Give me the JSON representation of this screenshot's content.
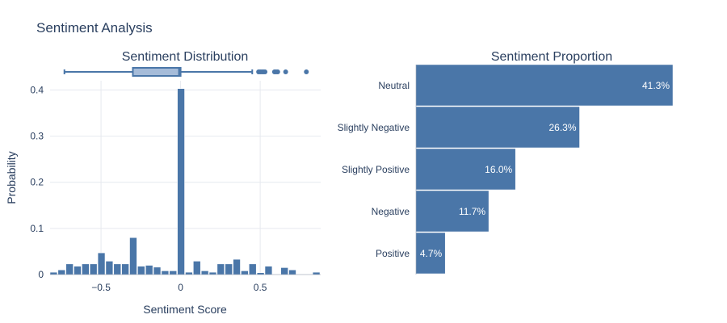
{
  "title": "Sentiment Analysis",
  "colors": {
    "bar": "#4a76a8",
    "box_fill": "#a6bcd9",
    "grid": "#e6e9ef",
    "text": "#2a3f5f"
  },
  "chart_data": [
    {
      "type": "bar",
      "title": "Sentiment Distribution",
      "xlabel": "Sentiment Score",
      "ylabel": "Probability",
      "xlim": [
        -0.82,
        0.88
      ],
      "ylim": [
        0,
        0.42
      ],
      "x_ticks": [
        "−0.5",
        "0",
        "0.5"
      ],
      "x_tick_values": [
        -0.5,
        0,
        0.5
      ],
      "y_ticks": [
        "0",
        "0.1",
        "0.2",
        "0.3",
        "0.4"
      ],
      "y_tick_values": [
        0,
        0.1,
        0.2,
        0.3,
        0.4
      ],
      "bin_width": 0.05,
      "bins": [
        {
          "x0": -0.82,
          "y": 0.005
        },
        {
          "x0": -0.77,
          "y": 0.01
        },
        {
          "x0": -0.72,
          "y": 0.023
        },
        {
          "x0": -0.67,
          "y": 0.018
        },
        {
          "x0": -0.62,
          "y": 0.023
        },
        {
          "x0": -0.57,
          "y": 0.023
        },
        {
          "x0": -0.52,
          "y": 0.047
        },
        {
          "x0": -0.47,
          "y": 0.029
        },
        {
          "x0": -0.42,
          "y": 0.023
        },
        {
          "x0": -0.37,
          "y": 0.023
        },
        {
          "x0": -0.32,
          "y": 0.08
        },
        {
          "x0": -0.27,
          "y": 0.018
        },
        {
          "x0": -0.22,
          "y": 0.02
        },
        {
          "x0": -0.17,
          "y": 0.016
        },
        {
          "x0": -0.12,
          "y": 0.008
        },
        {
          "x0": -0.07,
          "y": 0.008
        },
        {
          "x0": -0.02,
          "y": 0.403
        },
        {
          "x0": 0.03,
          "y": 0.005
        },
        {
          "x0": 0.08,
          "y": 0.029
        },
        {
          "x0": 0.13,
          "y": 0.008
        },
        {
          "x0": 0.18,
          "y": 0.005
        },
        {
          "x0": 0.23,
          "y": 0.023
        },
        {
          "x0": 0.28,
          "y": 0.023
        },
        {
          "x0": 0.33,
          "y": 0.033
        },
        {
          "x0": 0.38,
          "y": 0.008
        },
        {
          "x0": 0.43,
          "y": 0.023
        },
        {
          "x0": 0.48,
          "y": 0.004
        },
        {
          "x0": 0.53,
          "y": 0.018
        },
        {
          "x0": 0.63,
          "y": 0.015
        },
        {
          "x0": 0.68,
          "y": 0.01
        },
        {
          "x0": 0.83,
          "y": 0.005
        }
      ],
      "box": {
        "whisker_low": -0.73,
        "q1": -0.3,
        "median": -0.01,
        "q3": 0.0,
        "whisker_high": 0.45
      },
      "outliers": [
        0.49,
        0.5,
        0.51,
        0.52,
        0.53,
        0.59,
        0.6,
        0.61,
        0.66,
        0.79
      ]
    },
    {
      "type": "bar",
      "orientation": "horizontal",
      "title": "Sentiment Proportion",
      "categories": [
        "Neutral",
        "Slightly Negative",
        "Slightly Positive",
        "Negative",
        "Positive"
      ],
      "values": [
        41.3,
        26.3,
        16.0,
        11.7,
        4.7
      ],
      "labels": [
        "41.3%",
        "26.3%",
        "16.0%",
        "11.7%",
        "4.7%"
      ],
      "xlim": [
        0,
        41.3
      ]
    }
  ]
}
